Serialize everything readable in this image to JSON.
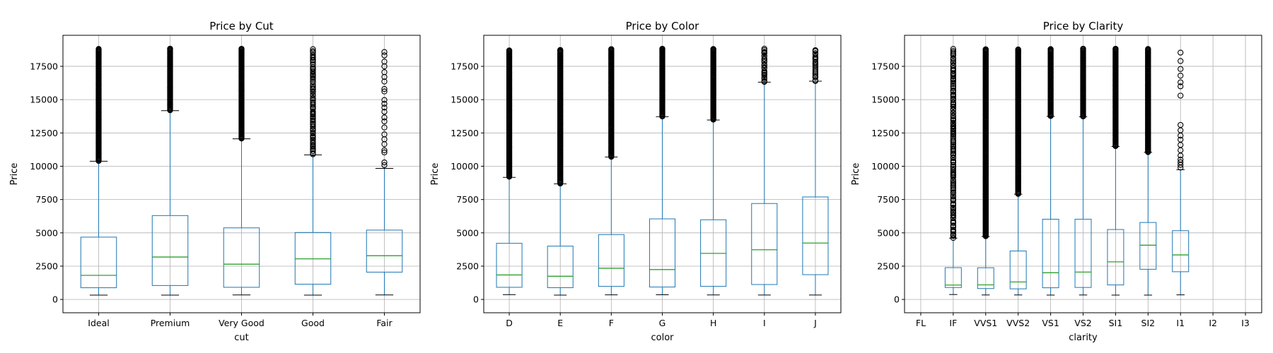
{
  "chart_data": [
    {
      "type": "boxplot",
      "title": "Price by Cut",
      "xlabel": "cut",
      "ylabel": "Price",
      "ylim": [
        -1000,
        19830
      ],
      "yticks": [
        0,
        2500,
        5000,
        7500,
        10000,
        12500,
        15000,
        17500
      ],
      "ytick_labels": [
        "0",
        "2500",
        "5000",
        "7500",
        "10000",
        "12500",
        "15000",
        "17500"
      ],
      "grid": true,
      "categories": [
        "Ideal",
        "Premium",
        "Very Good",
        "Good",
        "Fair"
      ],
      "boxes": [
        {
          "whislo": 326,
          "q1": 878,
          "med": 1810,
          "q3": 4678,
          "whishi": 10378,
          "fliers": {
            "min": 10400,
            "max": 18806,
            "density": "dense"
          }
        },
        {
          "whislo": 326,
          "q1": 1046,
          "med": 3185,
          "q3": 6296,
          "whishi": 14169,
          "fliers": {
            "min": 14200,
            "max": 18823,
            "density": "dense"
          }
        },
        {
          "whislo": 336,
          "q1": 912,
          "med": 2648,
          "q3": 5373,
          "whishi": 12057,
          "fliers": {
            "min": 12080,
            "max": 18818,
            "density": "dense"
          }
        },
        {
          "whislo": 327,
          "q1": 1145,
          "med": 3050,
          "q3": 5028,
          "whishi": 10851,
          "fliers": {
            "min": 10880,
            "max": 18788,
            "density": "medium"
          }
        },
        {
          "whislo": 337,
          "q1": 2050,
          "med": 3282,
          "q3": 5206,
          "whishi": 9836,
          "fliers": {
            "min": 9900,
            "max": 18574,
            "density": "sparse"
          }
        }
      ]
    },
    {
      "type": "boxplot",
      "title": "Price by Color",
      "xlabel": "color",
      "ylabel": "Price",
      "ylim": [
        -1000,
        19830
      ],
      "yticks": [
        0,
        2500,
        5000,
        7500,
        10000,
        12500,
        15000,
        17500
      ],
      "ytick_labels": [
        "0",
        "2500",
        "5000",
        "7500",
        "10000",
        "12500",
        "15000",
        "17500"
      ],
      "grid": true,
      "categories": [
        "D",
        "E",
        "F",
        "G",
        "H",
        "I",
        "J"
      ],
      "boxes": [
        {
          "whislo": 357,
          "q1": 911,
          "med": 1838,
          "q3": 4214,
          "whishi": 9161,
          "fliers": {
            "min": 9200,
            "max": 18693,
            "density": "dense"
          }
        },
        {
          "whislo": 326,
          "q1": 882,
          "med": 1739,
          "q3": 4003,
          "whishi": 8681,
          "fliers": {
            "min": 8700,
            "max": 18731,
            "density": "dense"
          }
        },
        {
          "whislo": 342,
          "q1": 982,
          "med": 2343,
          "q3": 4868,
          "whishi": 10694,
          "fliers": {
            "min": 10700,
            "max": 18791,
            "density": "dense"
          }
        },
        {
          "whislo": 354,
          "q1": 931,
          "med": 2242,
          "q3": 6048,
          "whishi": 13721,
          "fliers": {
            "min": 13740,
            "max": 18818,
            "density": "dense"
          }
        },
        {
          "whislo": 337,
          "q1": 984,
          "med": 3460,
          "q3": 5980,
          "whishi": 13472,
          "fliers": {
            "min": 13500,
            "max": 18803,
            "density": "dense"
          }
        },
        {
          "whislo": 334,
          "q1": 1120,
          "med": 3730,
          "q3": 7202,
          "whishi": 16311,
          "fliers": {
            "min": 16330,
            "max": 18823,
            "density": "medium"
          }
        },
        {
          "whislo": 335,
          "q1": 1860,
          "med": 4234,
          "q3": 7695,
          "whishi": 16386,
          "fliers": {
            "min": 16400,
            "max": 18710,
            "density": "medium"
          }
        }
      ]
    },
    {
      "type": "boxplot",
      "title": "Price by Clarity",
      "xlabel": "clarity",
      "ylabel": "Price",
      "ylim": [
        -1000,
        19830
      ],
      "yticks": [
        0,
        2500,
        5000,
        7500,
        10000,
        12500,
        15000,
        17500
      ],
      "ytick_labels": [
        "0",
        "2500",
        "5000",
        "7500",
        "10000",
        "12500",
        "15000",
        "17500"
      ],
      "grid": true,
      "categories": [
        "FL",
        "IF",
        "VVS1",
        "VVS2",
        "VS1",
        "VS2",
        "SI1",
        "SI2",
        "I1",
        "I2",
        "I3"
      ],
      "boxes": [
        null,
        {
          "whislo": 369,
          "q1": 895,
          "med": 1080,
          "q3": 2388,
          "whishi": 4600,
          "fliers": {
            "min": 4620,
            "max": 18806,
            "density": "medium"
          }
        },
        {
          "whislo": 336,
          "q1": 816,
          "med": 1093,
          "q3": 2379,
          "whishi": 4720,
          "fliers": {
            "min": 4740,
            "max": 18777,
            "density": "dense"
          }
        },
        {
          "whislo": 336,
          "q1": 794,
          "med": 1311,
          "q3": 3638,
          "whishi": 7900,
          "fliers": {
            "min": 7920,
            "max": 18768,
            "density": "dense"
          }
        },
        {
          "whislo": 327,
          "q1": 876,
          "med": 2005,
          "q3": 6023,
          "whishi": 13743,
          "fliers": {
            "min": 13760,
            "max": 18795,
            "density": "dense"
          }
        },
        {
          "whislo": 334,
          "q1": 900,
          "med": 2054,
          "q3": 6024,
          "whishi": 13715,
          "fliers": {
            "min": 13740,
            "max": 18823,
            "density": "dense"
          }
        },
        {
          "whislo": 326,
          "q1": 1089,
          "med": 2822,
          "q3": 5250,
          "whishi": 11485,
          "fliers": {
            "min": 11500,
            "max": 18818,
            "density": "dense"
          }
        },
        {
          "whislo": 326,
          "q1": 2264,
          "med": 4072,
          "q3": 5777,
          "whishi": 11047,
          "fliers": {
            "min": 11060,
            "max": 18804,
            "density": "dense"
          }
        },
        {
          "whislo": 345,
          "q1": 2080,
          "med": 3344,
          "q3": 5161,
          "whishi": 9740,
          "fliers": {
            "values": [
              9900,
              10100,
              10300,
              10500,
              10800,
              11200,
              11600,
              12000,
              12300,
              12700,
              13100,
              15300,
              16000,
              16300,
              16800,
              17300,
              17900,
              18531
            ],
            "density": "explicit"
          }
        },
        null,
        null
      ]
    }
  ],
  "colors": {
    "box": "#1f77b4",
    "median": "#2ca02c",
    "whisker": "#1f77b4",
    "cap": "#000000",
    "flier": "#000000",
    "grid": "#b0b0b0",
    "axes": "#000000"
  }
}
